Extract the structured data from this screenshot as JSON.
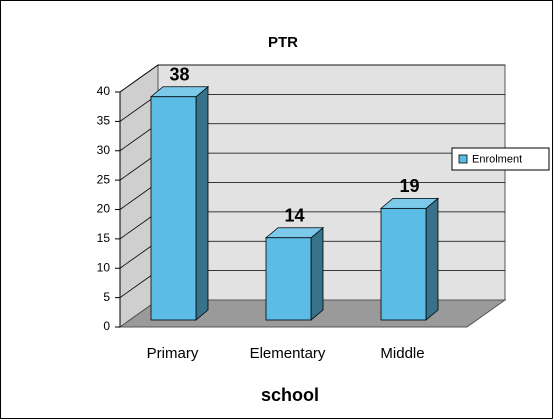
{
  "chart_data": {
    "type": "bar",
    "title": "PTR",
    "xlabel": "school",
    "categories": [
      "Primary",
      "Elementary",
      "Middle"
    ],
    "series": [
      {
        "name": "Enrolment",
        "color": "#5bbde6",
        "values": [
          38,
          14,
          19
        ]
      }
    ],
    "ylim": [
      0,
      40
    ],
    "yticks": [
      0,
      5,
      10,
      15,
      20,
      25,
      30,
      35,
      40
    ],
    "grid": true,
    "legend": "right"
  }
}
